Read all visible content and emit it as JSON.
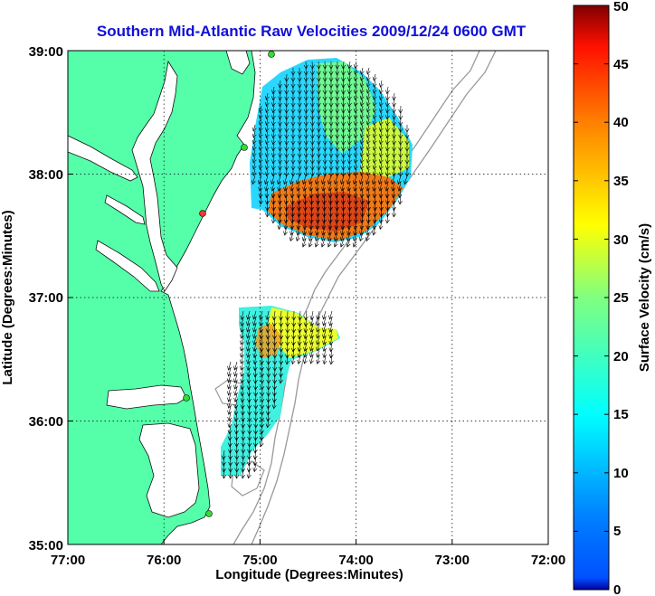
{
  "map": {
    "title": "Southern Mid-Atlantic Raw Velocities 2009/12/24 0600 GMT",
    "xlabel": "Longitude (Degrees:Minutes)",
    "ylabel": "Latitude (Degrees:Minutes)",
    "lon_range": [
      -77,
      -72
    ],
    "lat_range": [
      35,
      39
    ],
    "x_ticks": [
      "77:00",
      "76:00",
      "75:00",
      "74:00",
      "73:00",
      "72:00"
    ],
    "y_ticks": [
      "35:00",
      "36:00",
      "37:00",
      "38:00",
      "39:00"
    ],
    "grid": "dotted",
    "land_color": "#55ffaa",
    "bathymetry_color": "#999999",
    "arrow_color": "#000000",
    "stations": [
      {
        "color": "#33dd33"
      },
      {
        "color": "#33dd33"
      },
      {
        "color": "#ff3333"
      },
      {
        "color": "#33dd33"
      },
      {
        "color": "#33dd33"
      }
    ]
  },
  "colorbar": {
    "label": "Surface Velocity (cm/s)",
    "min": 0,
    "max": 50,
    "ticks": [
      "0",
      "5",
      "10",
      "15",
      "20",
      "25",
      "30",
      "35",
      "40",
      "45",
      "50"
    ],
    "colormap": "jet"
  }
}
